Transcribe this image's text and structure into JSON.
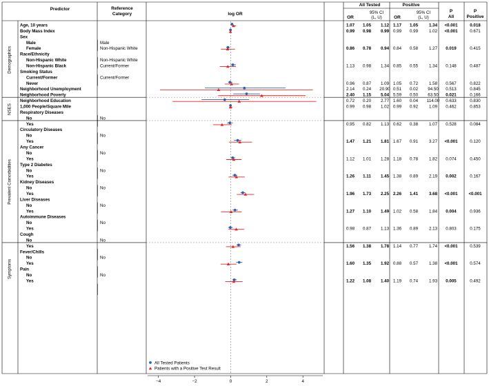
{
  "headers": {
    "predictor": "Predictor",
    "reference": [
      "Reference",
      "Category"
    ],
    "logor": "log OR",
    "all_tested": "All Tested",
    "positive": "Positive",
    "or": "OR",
    "ci": [
      "95% CI",
      "(L, U)"
    ],
    "p_all": [
      "P",
      "All"
    ],
    "p_pos": [
      "P",
      "Positive"
    ]
  },
  "legend": {
    "all": "All Tested Patients",
    "pos": "Patients with a Positive Test Result",
    "all_color": "#2e5fa8",
    "pos_color": "#e32222"
  },
  "groups": [
    {
      "name": "Demographics",
      "from": 0,
      "to": 12
    },
    {
      "name": "NSES",
      "from": 13,
      "to": 16
    },
    {
      "name": "Prevalent Comorbidities",
      "from": 17,
      "to": 37
    },
    {
      "name": "Symptoms",
      "from": 38,
      "to": 46
    }
  ],
  "rows": [
    {
      "label": "Age, 10 years",
      "bold": true,
      "ref": "",
      "ao": "1.07",
      "al": "1.05",
      "au": "1.12",
      "ab": true,
      "po": "1.17",
      "pl": "1.05",
      "pu": "1.34",
      "pb": true,
      "pa": "<0.001",
      "pab": true,
      "pp": "0.018",
      "ppb": true
    },
    {
      "label": "Body Mass Index",
      "bold": true,
      "ref": "",
      "ao": "0.99",
      "al": "0.98",
      "au": "0.99",
      "ab": true,
      "po": "0.99",
      "pl": "0.99",
      "pu": "1.02",
      "pb": false,
      "pa": "<0.001",
      "pab": true,
      "pp": "0.671",
      "ppb": false
    },
    {
      "label": "Sex",
      "bold": true,
      "ref": ""
    },
    {
      "label": "Male",
      "bold": true,
      "indent": true,
      "ref": "Male"
    },
    {
      "label": "Female",
      "bold": true,
      "indent": true,
      "ref": "Non-Hispanic White",
      "ao": "0.86",
      "al": "0.78",
      "au": "0.94",
      "ab": true,
      "po": "0.84",
      "pl": "0.58",
      "pu": "1.27",
      "pb": false,
      "pa": "0.019",
      "pab": true,
      "pp": "0.415",
      "ppb": false
    },
    {
      "label": "Race/Ethnicity",
      "bold": true,
      "ref": ""
    },
    {
      "label": "Non-Hispanic White",
      "bold": true,
      "indent": true,
      "ref": "Non-Hispanic White"
    },
    {
      "label": "Non-Hispanic Black",
      "bold": true,
      "indent": true,
      "ref": "Current/Former",
      "ao": "1.13",
      "al": "0.98",
      "au": "1.34",
      "ab": false,
      "po": "0.85",
      "pl": "0.55",
      "pu": "1.34",
      "pb": false,
      "pa": "0.148",
      "pab": false,
      "pp": "0.487",
      "ppb": false
    },
    {
      "label": "Smoking Status",
      "bold": true,
      "ref": ""
    },
    {
      "label": "Current/Former",
      "bold": true,
      "indent": true,
      "ref": "Current/Former"
    },
    {
      "label": "Never",
      "bold": true,
      "indent": true,
      "ref": "",
      "ao": "0.96",
      "al": "0.87",
      "au": "1.09",
      "ab": false,
      "po": "1.05",
      "pl": "0.72",
      "pu": "1.58",
      "pb": false,
      "pa": "0.567",
      "pab": false,
      "pp": "0.822",
      "ppb": false
    },
    {
      "label": "Neighborhood Unemployment",
      "bold": true,
      "ref": "",
      "ao": "2.14",
      "al": "0.24",
      "au": "20.90",
      "ab": false,
      "po": "0.51",
      "pl": "0.02",
      "pu": "94.50",
      "pb": false,
      "pa": "0.513",
      "pab": false,
      "pp": "0.845",
      "ppb": false
    },
    {
      "label": "Neighborhood Poverty",
      "bold": true,
      "ref": "",
      "ao": "2.40",
      "al": "1.15",
      "au": "5.04",
      "ab": true,
      "po": "5.59",
      "pl": "0.50",
      "pu": "63.50",
      "pb": false,
      "pa": "0.021",
      "pab": true,
      "pp": "0.166",
      "ppb": false
    },
    {
      "label": "Neighborhood Education",
      "bold": true,
      "ref": "",
      "ao": "0.72",
      "al": "0.20",
      "au": "2.77",
      "ab": false,
      "po": "1.60",
      "pl": "0.04",
      "pu": "114.00",
      "pb": false,
      "pa": "0.633",
      "pab": false,
      "pp": "0.830",
      "ppb": false
    },
    {
      "label": "1,000 People/Square Mile",
      "bold": true,
      "ref": "",
      "ao": "0.99",
      "al": "0.98",
      "au": "1.02",
      "ab": false,
      "po": "0.99",
      "pl": "0.92",
      "pu": "1.09",
      "pb": false,
      "pa": "0.462",
      "pab": false,
      "pp": "0.853",
      "ppb": false
    },
    {
      "label": "Respiratory Diseases",
      "bold": true,
      "ref": ""
    },
    {
      "label": "No",
      "bold": true,
      "indent": true,
      "ref": "No"
    },
    {
      "label": "Yes",
      "bold": true,
      "indent": true,
      "ref": "",
      "ao": "0.95",
      "al": "0.82",
      "au": "1.13",
      "ab": false,
      "po": "0.62",
      "pl": "0.38",
      "pu": "1.07",
      "pb": false,
      "pa": "0.528",
      "pab": false,
      "pp": "0.084",
      "ppb": false
    },
    {
      "label": "Circulatory Diseases",
      "bold": true,
      "ref": ""
    },
    {
      "label": "No",
      "bold": true,
      "indent": true,
      "ref": "No"
    },
    {
      "label": "Yes",
      "bold": true,
      "indent": true,
      "ref": "",
      "ao": "1.47",
      "al": "1.21",
      "au": "1.81",
      "ab": true,
      "po": "1.67",
      "pl": "0.91",
      "pu": "3.27",
      "pb": false,
      "pa": "<0.001",
      "pab": true,
      "pp": "0.120",
      "ppb": false
    },
    {
      "label": "Any Cancer",
      "bold": true,
      "ref": ""
    },
    {
      "label": "No",
      "bold": true,
      "indent": true,
      "ref": "No"
    },
    {
      "label": "Yes",
      "bold": true,
      "indent": true,
      "ref": "",
      "ao": "1.12",
      "al": "1.01",
      "au": "1.28",
      "ab": false,
      "po": "1.18",
      "pl": "0.78",
      "pu": "1.82",
      "pb": false,
      "pa": "0.074",
      "pab": false,
      "pp": "0.450",
      "ppb": false
    },
    {
      "label": "Type 2 Diabetes",
      "bold": true,
      "ref": ""
    },
    {
      "label": "No",
      "bold": true,
      "indent": true,
      "ref": "No"
    },
    {
      "label": "Yes",
      "bold": true,
      "indent": true,
      "ref": "",
      "ao": "1.26",
      "al": "1.11",
      "au": "1.45",
      "ab": true,
      "po": "1.38",
      "pl": "0.89",
      "pu": "2.19",
      "pb": false,
      "pa": "0.002",
      "pab": true,
      "pp": "0.167",
      "ppb": false
    },
    {
      "label": "Kidney Diseases",
      "bold": true,
      "ref": ""
    },
    {
      "label": "No",
      "bold": true,
      "indent": true,
      "ref": "No"
    },
    {
      "label": "Yes",
      "bold": true,
      "indent": true,
      "ref": "",
      "ao": "1.96",
      "al": "1.73",
      "au": "2.25",
      "ab": true,
      "po": "2.26",
      "pl": "1.41",
      "pu": "3.68",
      "pb": true,
      "pa": "<0.001",
      "pab": true,
      "pp": "<0.001",
      "ppb": true
    },
    {
      "label": "Liver Diseases",
      "bold": true,
      "ref": ""
    },
    {
      "label": "No",
      "bold": true,
      "indent": true,
      "ref": "No"
    },
    {
      "label": "Yes",
      "bold": true,
      "indent": true,
      "ref": "",
      "ao": "1.27",
      "al": "1.10",
      "au": "1.49",
      "ab": true,
      "po": "1.02",
      "pl": "0.58",
      "pu": "1.84",
      "pb": false,
      "pa": "0.004",
      "pab": true,
      "pp": "0.936",
      "ppb": false
    },
    {
      "label": "Autoimmune Diseases",
      "bold": true,
      "ref": ""
    },
    {
      "label": "No",
      "bold": true,
      "indent": true,
      "ref": "No"
    },
    {
      "label": "Yes",
      "bold": true,
      "indent": true,
      "ref": "",
      "ao": "0.98",
      "al": "0.87",
      "au": "1.13",
      "ab": false,
      "po": "1.36",
      "pl": "0.89",
      "pu": "2.13",
      "pb": false,
      "pa": "0.803",
      "pab": false,
      "pp": "0.175",
      "ppb": false
    },
    {
      "label": "Cough",
      "bold": true,
      "ref": ""
    },
    {
      "label": "No",
      "bold": true,
      "indent": true,
      "ref": "No"
    },
    {
      "label": "Yes",
      "bold": true,
      "indent": true,
      "ref": "",
      "ao": "1.56",
      "al": "1.38",
      "au": "1.78",
      "ab": true,
      "po": "1.14",
      "pl": "0.77",
      "pu": "1.74",
      "pb": false,
      "pa": "<0.001",
      "pab": true,
      "pp": "0.539",
      "ppb": false
    },
    {
      "label": "Fever/Chills",
      "bold": true,
      "ref": ""
    },
    {
      "label": "No",
      "bold": true,
      "indent": true,
      "ref": "No"
    },
    {
      "label": "Yes",
      "bold": true,
      "indent": true,
      "ref": "",
      "ao": "1.60",
      "al": "1.35",
      "au": "1.92",
      "ab": true,
      "po": "0.88",
      "pl": "0.57",
      "pu": "1.38",
      "pb": false,
      "pa": "<0.001",
      "pab": true,
      "pp": "0.574",
      "ppb": false
    },
    {
      "label": "Pain",
      "bold": true,
      "ref": ""
    },
    {
      "label": "No",
      "bold": true,
      "indent": true,
      "ref": "No"
    },
    {
      "label": "Yes",
      "bold": true,
      "indent": true,
      "ref": "",
      "ao": "1.22",
      "al": "1.08",
      "au": "1.40",
      "ab": true,
      "po": "1.19",
      "pl": "0.74",
      "pu": "1.93",
      "pb": false,
      "pa": "0.005",
      "pab": true,
      "pp": "0.492",
      "ppb": false
    }
  ],
  "chart_data": {
    "type": "scatter",
    "xlabel": "",
    "ylabel": "",
    "xlim": [
      -4.6,
      5.1
    ],
    "xticks": [
      -4,
      -2,
      0,
      2,
      4
    ],
    "reference_line": 0,
    "legend_placement": "bottom-left",
    "series": [
      {
        "name": "All Tested Patients",
        "color": "#2e5fa8",
        "marker": "circle",
        "points": [
          {
            "row": "Age, 10 years",
            "est": 0.07,
            "lo": 0.05,
            "hi": 0.11
          },
          {
            "row": "Body Mass Index",
            "est": -0.01,
            "lo": -0.02,
            "hi": -0.01
          },
          {
            "row": "Female",
            "est": -0.15,
            "lo": -0.25,
            "hi": -0.06
          },
          {
            "row": "Non-Hispanic Black",
            "est": 0.12,
            "lo": -0.02,
            "hi": 0.29
          },
          {
            "row": "Never",
            "est": -0.04,
            "lo": -0.14,
            "hi": 0.09
          },
          {
            "row": "Neighborhood Unemployment",
            "est": 0.76,
            "lo": -1.43,
            "hi": 3.04
          },
          {
            "row": "Neighborhood Poverty",
            "est": 0.88,
            "lo": 0.14,
            "hi": 1.62
          },
          {
            "row": "Neighborhood Education",
            "est": -0.33,
            "lo": -1.61,
            "hi": 1.02
          },
          {
            "row": "1,000 People/Square Mile",
            "est": -0.01,
            "lo": -0.02,
            "hi": 0.02
          },
          {
            "row": "Respiratory Diseases: Yes",
            "est": -0.05,
            "lo": -0.2,
            "hi": 0.12
          },
          {
            "row": "Circulatory Diseases: Yes",
            "est": 0.39,
            "lo": 0.19,
            "hi": 0.59
          },
          {
            "row": "Any Cancer: Yes",
            "est": 0.11,
            "lo": 0.01,
            "hi": 0.25
          },
          {
            "row": "Type 2 Diabetes: Yes",
            "est": 0.23,
            "lo": 0.1,
            "hi": 0.37
          },
          {
            "row": "Kidney Diseases: Yes",
            "est": 0.67,
            "lo": 0.55,
            "hi": 0.81
          },
          {
            "row": "Liver Diseases: Yes",
            "est": 0.24,
            "lo": 0.1,
            "hi": 0.4
          },
          {
            "row": "Autoimmune Diseases: Yes",
            "est": -0.02,
            "lo": -0.14,
            "hi": 0.12
          },
          {
            "row": "Cough: Yes",
            "est": 0.44,
            "lo": 0.32,
            "hi": 0.58
          },
          {
            "row": "Fever/Chills: Yes",
            "est": 0.47,
            "lo": 0.3,
            "hi": 0.65
          },
          {
            "row": "Pain: Yes",
            "est": 0.2,
            "lo": 0.08,
            "hi": 0.34
          }
        ]
      },
      {
        "name": "Patients with a Positive Test Result",
        "color": "#e32222",
        "marker": "triangle",
        "points": [
          {
            "row": "Age, 10 years",
            "est": 0.16,
            "lo": 0.05,
            "hi": 0.29
          },
          {
            "row": "Body Mass Index",
            "est": -0.01,
            "lo": -0.01,
            "hi": 0.02
          },
          {
            "row": "Female",
            "est": -0.17,
            "lo": -0.54,
            "hi": 0.24
          },
          {
            "row": "Non-Hispanic Black",
            "est": -0.16,
            "lo": -0.6,
            "hi": 0.29
          },
          {
            "row": "Never",
            "est": 0.05,
            "lo": -0.33,
            "hi": 0.46
          },
          {
            "row": "Neighborhood Unemployment",
            "est": -0.67,
            "lo": -3.91,
            "hi": 4.55
          },
          {
            "row": "Neighborhood Poverty",
            "est": 1.72,
            "lo": -0.69,
            "hi": 4.15
          },
          {
            "row": "Neighborhood Education",
            "est": 0.47,
            "lo": -3.22,
            "hi": 4.74
          },
          {
            "row": "1,000 People/Square Mile",
            "est": -0.01,
            "lo": -0.08,
            "hi": 0.09
          },
          {
            "row": "Respiratory Diseases: Yes",
            "est": -0.48,
            "lo": -0.97,
            "hi": 0.07
          },
          {
            "row": "Circulatory Diseases: Yes",
            "est": 0.51,
            "lo": -0.09,
            "hi": 1.18
          },
          {
            "row": "Any Cancer: Yes",
            "est": 0.17,
            "lo": -0.25,
            "hi": 0.6
          },
          {
            "row": "Type 2 Diabetes: Yes",
            "est": 0.32,
            "lo": -0.12,
            "hi": 0.78
          },
          {
            "row": "Kidney Diseases: Yes",
            "est": 0.82,
            "lo": 0.34,
            "hi": 1.3
          },
          {
            "row": "Liver Diseases: Yes",
            "est": 0.02,
            "lo": -0.54,
            "hi": 0.61
          },
          {
            "row": "Autoimmune Diseases: Yes",
            "est": 0.31,
            "lo": -0.12,
            "hi": 0.76
          },
          {
            "row": "Cough: Yes",
            "est": 0.13,
            "lo": -0.26,
            "hi": 0.55
          },
          {
            "row": "Fever/Chills: Yes",
            "est": -0.13,
            "lo": -0.56,
            "hi": 0.32
          },
          {
            "row": "Pain: Yes",
            "est": 0.17,
            "lo": -0.3,
            "hi": 0.66
          }
        ]
      }
    ]
  }
}
